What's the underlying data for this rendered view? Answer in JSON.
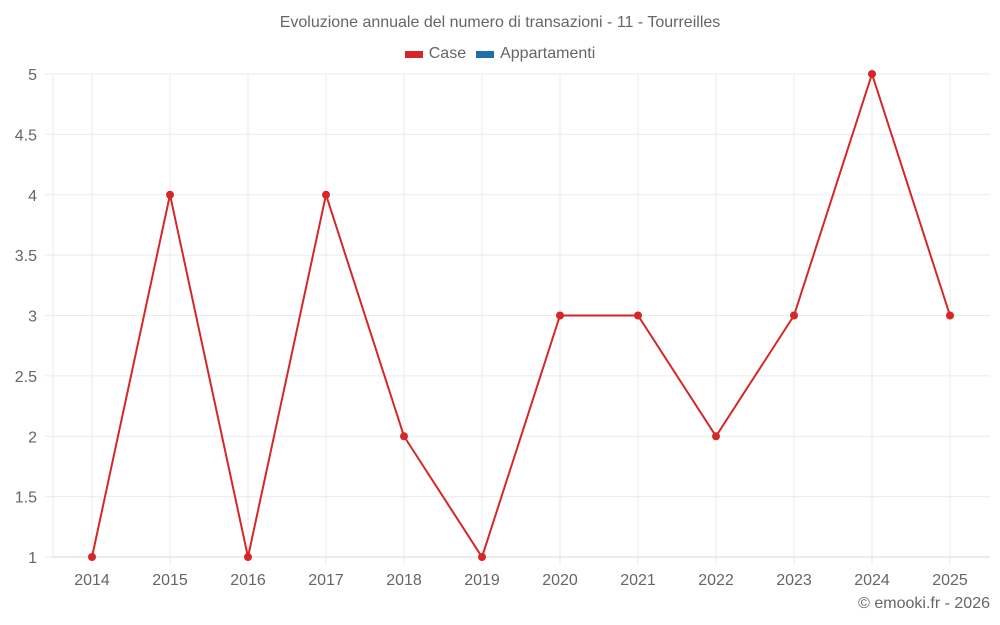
{
  "chart_data": {
    "type": "line",
    "title": "Evoluzione annuale del numero di transazioni - 11 - Tourreilles",
    "xlabel": "",
    "ylabel": "",
    "categories": [
      "2014",
      "2015",
      "2016",
      "2017",
      "2018",
      "2019",
      "2020",
      "2021",
      "2022",
      "2023",
      "2024",
      "2025"
    ],
    "series": [
      {
        "name": "Case",
        "color": "#d62728",
        "values": [
          1,
          4,
          1,
          4,
          2,
          1,
          3,
          3,
          2,
          3,
          5,
          3
        ]
      },
      {
        "name": "Appartamenti",
        "color": "#1f6fa8",
        "values": []
      }
    ],
    "ylim": [
      1,
      5
    ],
    "yticks": [
      "1",
      "1.5",
      "2",
      "2.5",
      "3",
      "3.5",
      "4",
      "4.5",
      "5"
    ],
    "grid": true,
    "legend_position": "top"
  },
  "legend": [
    {
      "label": "Case",
      "color": "#d62728"
    },
    {
      "label": "Appartamenti",
      "color": "#1f6fa8"
    }
  ],
  "credit": "© emooki.fr - 2026"
}
